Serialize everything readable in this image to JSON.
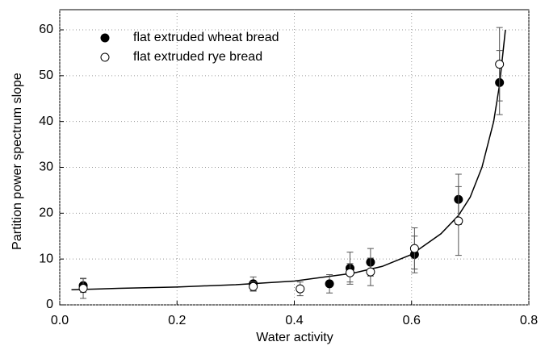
{
  "chart_data": {
    "type": "scatter",
    "xlabel": "Water activity",
    "ylabel": "Partition power spectrum slope",
    "xlim": [
      0,
      0.8
    ],
    "xticks": [
      {
        "value": 0,
        "label": "0.0"
      },
      0.2,
      0.4,
      0.6,
      0.8
    ],
    "ylim": [
      0,
      60
    ],
    "yticks": [
      0,
      10,
      20,
      30,
      40,
      50,
      60
    ],
    "grid": true,
    "legend": "upper left",
    "series": [
      {
        "name": "flat extruded wheat bread",
        "color": "#000000",
        "filled": true,
        "x": [
          0.04,
          0.33,
          0.46,
          0.495,
          0.53,
          0.605,
          0.68,
          0.75
        ],
        "values": [
          4.2,
          4.6,
          4.6,
          8.0,
          9.3,
          11.0,
          23.0,
          48.5
        ],
        "errors": [
          1.5,
          1.5,
          2.0,
          3.5,
          3.0,
          4.0,
          5.5,
          7.0
        ]
      },
      {
        "name": "flat extruded rye bread",
        "color": "#000000",
        "filled": false,
        "x": [
          0.04,
          0.33,
          0.41,
          0.495,
          0.53,
          0.605,
          0.68,
          0.75
        ],
        "values": [
          3.6,
          4.0,
          3.5,
          7.0,
          7.2,
          12.3,
          18.3,
          52.5
        ],
        "errors": [
          2.2,
          1.0,
          1.5,
          2.0,
          3.0,
          4.5,
          7.5,
          8.0
        ]
      }
    ],
    "curve": {
      "x": [
        0.02,
        0.1,
        0.2,
        0.3,
        0.4,
        0.5,
        0.55,
        0.6,
        0.65,
        0.68,
        0.7,
        0.72,
        0.74,
        0.75,
        0.76
      ],
      "y": [
        3.3,
        3.6,
        3.9,
        4.4,
        5.2,
        6.9,
        8.4,
        11,
        15.5,
        19.5,
        23.5,
        30,
        40,
        48,
        60
      ]
    }
  }
}
